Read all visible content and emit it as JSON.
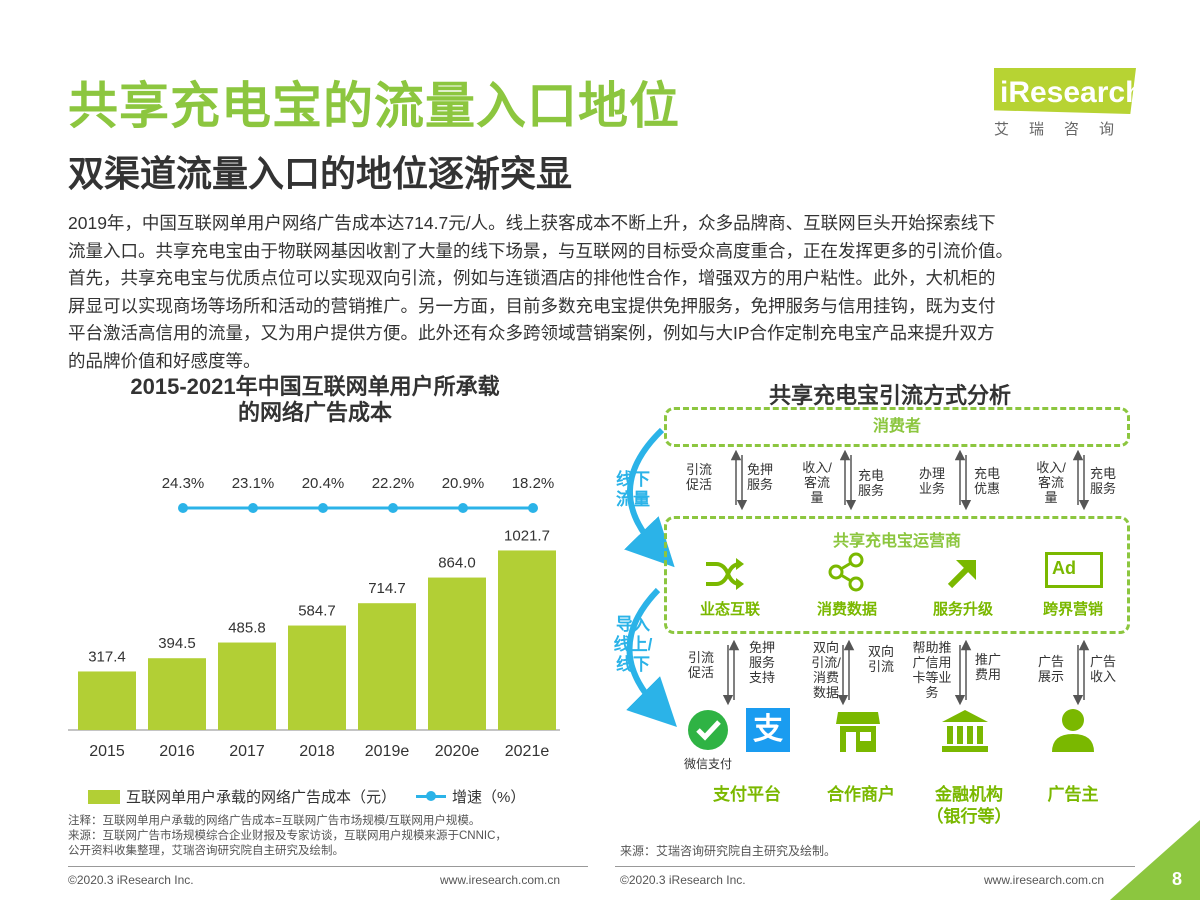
{
  "header": {
    "title": "共享充电宝的流量入口地位",
    "subtitle": "双渠道流量入口的地位逐渐突显",
    "logo_text": "iResearch",
    "logo_sub": "艾瑞咨询"
  },
  "paragraph": [
    "2019年，中国互联网单用户网络广告成本达714.7元/人。线上获客成本不断上升，众多品牌商、互联网巨头开始探索线下",
    "流量入口。共享充电宝由于物联网基因收割了大量的线下场景，与互联网的目标受众高度重合，正在发挥更多的引流价值。",
    "首先，共享充电宝与优质点位可以实现双向引流，例如与连锁酒店的排他性合作，增强双方的用户粘性。此外，大机柜的",
    "屏显可以实现商场等场所和活动的营销推广。另一方面，目前多数充电宝提供免押服务，免押服务与信用挂钩，既为支付",
    "平台激活高信用的流量，又为用户提供方便。此外还有众多跨领域营销案例，例如与大IP合作定制充电宝产品来提升双方",
    "的品牌价值和好感度等。"
  ],
  "chart_data": {
    "type": "bar",
    "title_lines": [
      "2015-2021年中国互联网单用户所承载",
      "的网络广告成本"
    ],
    "categories": [
      "2015",
      "2016",
      "2017",
      "2018",
      "2019e",
      "2020e",
      "2021e"
    ],
    "series": [
      {
        "name": "互联网单用户承载的网络广告成本（元）",
        "type": "bar",
        "color": "#b2cf35",
        "values": [
          317.4,
          394.5,
          485.8,
          584.7,
          714.7,
          864.0,
          1021.7
        ],
        "labels": [
          "317.4",
          "394.5",
          "485.8",
          "584.7",
          "714.7",
          "864.0",
          "1021.7"
        ]
      },
      {
        "name": "增速（%）",
        "type": "line",
        "color": "#2bb3e8",
        "values": [
          null,
          24.3,
          23.1,
          20.4,
          22.2,
          20.9,
          18.2
        ],
        "labels": [
          "",
          "24.3%",
          "23.1%",
          "20.4%",
          "22.2%",
          "20.9%",
          "18.2%"
        ]
      }
    ],
    "ylim": [
      0,
      1100
    ],
    "grid": false,
    "legend": "bottom"
  },
  "notes": [
    "注释：互联网单用户承载的网络广告成本=互联网广告市场规模/互联网用户规模。",
    "来源：互联网广告市场规模综合企业财报及专家访谈，互联网用户规模来源于CNNIC，",
    "公开资料收集整理，艾瑞咨询研究院自主研究及绘制。"
  ],
  "diagram": {
    "title": "共享充电宝引流方式分析",
    "consumer": "消费者",
    "operator": "共享充电宝运营商",
    "left_top": "线下流量",
    "left_bottom": "导入线上/线下",
    "top_flows": [
      {
        "up": "引流促活",
        "down": "免押服务"
      },
      {
        "up": "收入/客流量",
        "down": "充电服务"
      },
      {
        "up": "办理业务",
        "down": "充电优惠"
      },
      {
        "up": "收入/客流量",
        "down": "充电服务"
      }
    ],
    "operator_items": [
      {
        "label": "业态互联",
        "icon": "shuffle-icon"
      },
      {
        "label": "消费数据",
        "icon": "share-icon"
      },
      {
        "label": "服务升级",
        "icon": "arrow-up-right-icon"
      },
      {
        "label": "跨界营销",
        "icon": "ad-board-icon"
      }
    ],
    "bottom_flows": [
      {
        "up": "引流促活",
        "down": "免押服务支持"
      },
      {
        "up": "双向引流/消费数据",
        "down": "双向引流"
      },
      {
        "up": "帮助推广信用卡等业务",
        "down": "推广费用"
      },
      {
        "up": "广告展示",
        "down": "广告收入"
      }
    ],
    "partners": [
      {
        "label": "支付平台",
        "icon": "payment-icon",
        "sub": "微信支付"
      },
      {
        "label": "合作商户",
        "icon": "store-icon"
      },
      {
        "label": "金融机构\n（银行等）",
        "icon": "bank-icon"
      },
      {
        "label": "广告主",
        "icon": "person-icon"
      }
    ],
    "alipay_glyph": "支",
    "ad_glyph": "Ad",
    "source": "来源：艾瑞咨询研究院自主研究及绘制。"
  },
  "footer": {
    "left_copy": "©2020.3 iResearch Inc.",
    "left_url": "www.iresearch.com.cn",
    "right_copy": "©2020.3 iResearch Inc.",
    "right_url": "www.iresearch.com.cn",
    "page": "8"
  }
}
